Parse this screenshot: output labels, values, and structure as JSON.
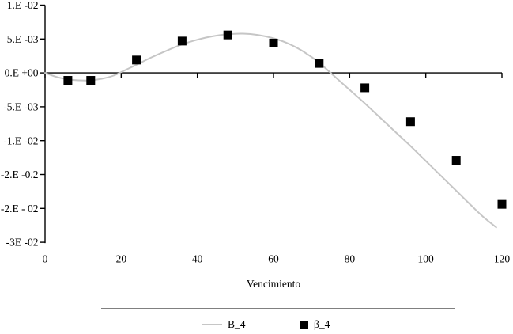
{
  "chart_data": {
    "type": "line",
    "xlabel": "Vencimiento",
    "x_axis": {
      "range": [
        0,
        120
      ],
      "ticks": [
        0,
        20,
        40,
        60,
        80,
        100,
        120
      ],
      "tick_labels": [
        "0",
        "20",
        "40",
        "60",
        "80",
        "100",
        "120"
      ]
    },
    "y_axis": {
      "tick_labels": [
        "1.E -02",
        "5.E -03",
        "0.E +00",
        "-5.E -03",
        "-1.E -02",
        "-2.E -0.2",
        "-2.E - 02",
        "-3E -02"
      ],
      "tick_step_value": 0.005,
      "grid": false
    },
    "series": [
      {
        "name": "B_4",
        "type": "line",
        "color": "#c6c6c6",
        "x": [
          0,
          3,
          6,
          9,
          12,
          15,
          18,
          21,
          24,
          28,
          32,
          36,
          40,
          44,
          48,
          52,
          56,
          60,
          64,
          68,
          72,
          76,
          80,
          84,
          88,
          92,
          96,
          100,
          104,
          108,
          112,
          115,
          118.5
        ],
        "y": [
          0,
          -0.0006,
          -0.00095,
          -0.0011,
          -0.0011,
          -0.00085,
          -0.0004,
          0.0004,
          0.0012,
          0.0023,
          0.0033,
          0.0042,
          0.0049,
          0.0054,
          0.0057,
          0.0058,
          0.0056,
          0.0051,
          0.0043,
          0.0031,
          0.0015,
          -0.0005,
          -0.0025,
          -0.0045,
          -0.0066,
          -0.0087,
          -0.0108,
          -0.013,
          -0.0152,
          -0.0174,
          -0.0196,
          -0.0212,
          -0.0228
        ]
      },
      {
        "name": "β_4",
        "type": "scatter",
        "color": "#000000",
        "marker": "square",
        "x": [
          6,
          12,
          24,
          36,
          48,
          60,
          72,
          84,
          96,
          108,
          120
        ],
        "y": [
          -0.0011,
          -0.0011,
          0.0019,
          0.0047,
          0.0056,
          0.0044,
          0.0014,
          -0.0022,
          -0.0072,
          -0.0129,
          -0.0194
        ]
      }
    ],
    "legend": {
      "position": "bottom",
      "items": [
        {
          "label": "B_4",
          "marker": "line"
        },
        {
          "label": "β_4",
          "marker": "square"
        }
      ]
    },
    "colors": {
      "axis": "#000000",
      "curve": "#c6c6c6",
      "marker": "#000000",
      "legend_divider": "#808080"
    }
  }
}
